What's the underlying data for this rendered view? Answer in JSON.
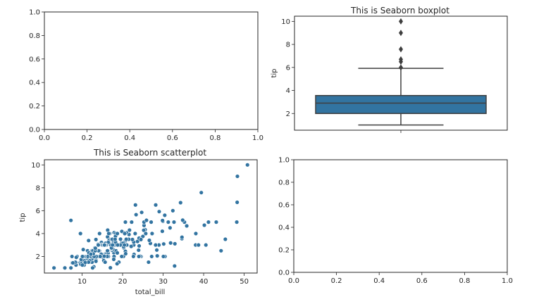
{
  "chart_data": [
    {
      "type": "empty",
      "xlim": [
        0,
        1
      ],
      "ylim": [
        0,
        1
      ],
      "xticks": [
        "0.0",
        "0.2",
        "0.4",
        "0.6",
        "0.8",
        "1.0"
      ],
      "yticks": [
        "0.0",
        "0.2",
        "0.4",
        "0.6",
        "0.8",
        "1.0"
      ]
    },
    {
      "type": "box",
      "title": "This is Seaborn boxplot",
      "ylabel": "tip",
      "ylim": [
        0.55,
        10.45
      ],
      "yticks": [
        "2",
        "4",
        "6",
        "8",
        "10"
      ],
      "box_color": "#3274a1",
      "stats": {
        "whisker_low": 1.0,
        "q1": 2.0,
        "median": 2.9,
        "q3": 3.56,
        "whisker_high": 5.92
      },
      "outliers": [
        6.0,
        6.5,
        6.7,
        7.58,
        9.0,
        10.0
      ]
    },
    {
      "type": "scatter",
      "title": "This is Seaborn scatterplot",
      "xlabel": "total_bill",
      "ylabel": "tip",
      "xlim": [
        0.7,
        53.2
      ],
      "ylim": [
        0.55,
        10.45
      ],
      "xticks": [
        "10",
        "20",
        "30",
        "40",
        "50"
      ],
      "yticks": [
        "2",
        "4",
        "6",
        "8",
        "10"
      ],
      "marker_color": "#3274a1",
      "x": [
        16.99,
        10.34,
        21.01,
        23.68,
        24.59,
        25.29,
        8.77,
        26.88,
        15.04,
        14.78,
        10.27,
        35.26,
        15.42,
        18.43,
        14.83,
        21.58,
        10.33,
        16.29,
        16.97,
        20.65,
        17.92,
        20.29,
        15.77,
        39.42,
        19.82,
        17.81,
        13.37,
        12.69,
        21.7,
        19.65,
        9.55,
        18.35,
        15.06,
        20.69,
        17.78,
        24.06,
        16.31,
        16.93,
        18.69,
        31.27,
        16.04,
        17.46,
        13.94,
        9.68,
        30.4,
        18.29,
        22.23,
        32.4,
        28.55,
        18.04,
        12.54,
        10.29,
        34.81,
        9.94,
        25.56,
        19.49,
        38.01,
        26.41,
        11.24,
        48.27,
        20.29,
        13.81,
        11.02,
        18.29,
        17.59,
        20.08,
        16.45,
        3.07,
        20.23,
        15.01,
        12.02,
        17.07,
        26.86,
        25.28,
        14.73,
        10.51,
        17.92,
        27.2,
        22.76,
        17.29,
        19.44,
        16.66,
        10.07,
        32.68,
        15.98,
        34.83,
        13.03,
        18.28,
        24.71,
        21.16,
        28.97,
        22.49,
        5.75,
        16.32,
        22.75,
        40.17,
        27.28,
        12.03,
        21.01,
        12.46,
        11.35,
        15.38,
        44.3,
        22.42,
        20.92,
        15.36,
        20.49,
        25.21,
        18.24,
        14.31,
        14.0,
        7.25,
        38.07,
        23.95,
        25.71,
        17.31,
        29.93,
        10.65,
        12.43,
        24.08,
        11.69,
        13.42,
        14.26,
        15.95,
        12.48,
        29.8,
        8.52,
        14.52,
        11.38,
        22.82,
        19.08,
        20.27,
        11.17,
        12.26,
        18.26,
        8.51,
        10.33,
        14.15,
        16.0,
        13.16,
        17.47,
        34.3,
        41.19,
        27.05,
        16.43,
        8.35,
        18.64,
        11.87,
        9.78,
        7.51,
        14.07,
        13.13,
        17.26,
        24.55,
        19.77,
        29.85,
        48.17,
        25.0,
        13.39,
        16.49,
        21.5,
        12.66,
        16.21,
        13.81,
        17.51,
        24.52,
        20.76,
        31.71,
        10.59,
        10.63,
        50.81,
        15.81,
        7.25,
        31.85,
        16.82,
        32.9,
        17.89,
        14.48,
        9.6,
        34.63,
        34.65,
        23.33,
        45.35,
        23.17,
        40.55,
        20.69,
        20.9,
        30.46,
        18.15,
        23.1,
        15.69,
        19.81,
        28.44,
        15.48,
        16.58,
        7.56,
        10.34,
        43.11,
        13.0,
        13.51,
        18.71,
        12.74,
        13.0,
        16.4,
        20.53,
        16.47,
        26.59,
        38.73,
        24.27,
        12.76,
        30.06,
        25.89,
        48.33,
        13.27,
        28.17,
        12.9,
        28.15,
        11.59,
        7.74,
        30.14,
        12.16,
        13.42,
        8.58,
        15.98,
        13.42,
        16.27,
        10.09,
        20.45,
        13.28,
        22.12,
        24.01,
        15.69,
        11.61,
        10.77,
        15.53,
        10.07,
        12.6,
        32.83,
        35.83,
        29.03,
        27.18,
        22.67,
        17.82,
        18.78
      ],
      "y": [
        1.01,
        1.66,
        3.5,
        3.31,
        3.61,
        4.71,
        2.0,
        3.12,
        1.96,
        3.23,
        1.71,
        5.0,
        1.57,
        3.0,
        3.02,
        3.92,
        1.67,
        3.71,
        3.5,
        3.35,
        4.08,
        2.75,
        2.23,
        7.58,
        3.18,
        2.34,
        2.0,
        2.0,
        4.3,
        3.0,
        1.45,
        2.5,
        3.0,
        2.45,
        3.27,
        3.6,
        2.0,
        3.07,
        2.31,
        5.0,
        2.24,
        2.54,
        3.06,
        1.32,
        5.6,
        3.0,
        5.0,
        6.0,
        2.05,
        3.0,
        2.5,
        2.6,
        5.2,
        1.56,
        4.34,
        3.51,
        3.0,
        1.5,
        1.76,
        6.73,
        3.21,
        2.0,
        1.98,
        3.76,
        2.64,
        3.15,
        2.47,
        1.0,
        2.01,
        2.09,
        1.97,
        3.0,
        3.14,
        5.0,
        2.2,
        1.25,
        3.08,
        4.0,
        3.0,
        2.71,
        3.0,
        3.4,
        1.83,
        5.0,
        2.03,
        5.17,
        2.0,
        4.0,
        5.85,
        3.0,
        3.0,
        3.5,
        1.0,
        4.3,
        3.25,
        4.73,
        4.0,
        1.5,
        3.0,
        1.5,
        2.5,
        3.0,
        2.5,
        3.48,
        4.08,
        1.64,
        4.06,
        4.29,
        3.76,
        4.0,
        3.0,
        1.0,
        4.0,
        2.55,
        4.0,
        3.5,
        5.07,
        1.5,
        1.8,
        2.92,
        2.31,
        1.68,
        2.5,
        2.0,
        2.52,
        4.2,
        1.48,
        2.0,
        2.0,
        2.18,
        1.5,
        2.83,
        1.5,
        2.0,
        3.25,
        1.25,
        2.0,
        2.0,
        2.0,
        2.75,
        3.5,
        6.7,
        5.0,
        5.0,
        2.3,
        1.5,
        1.36,
        1.63,
        1.73,
        2.0,
        2.5,
        2.0,
        2.74,
        2.0,
        2.0,
        5.14,
        5.0,
        3.75,
        2.61,
        2.0,
        3.5,
        2.5,
        2.0,
        2.0,
        3.0,
        3.48,
        2.24,
        4.5,
        1.61,
        2.0,
        10.0,
        3.16,
        5.15,
        3.18,
        4.0,
        3.11,
        2.0,
        2.0,
        4.0,
        3.55,
        3.68,
        5.65,
        3.5,
        6.5,
        3.0,
        5.0,
        3.5,
        2.0,
        3.5,
        4.0,
        1.5,
        4.19,
        2.56,
        2.02,
        4.0,
        1.44,
        2.0,
        5.0,
        2.0,
        2.0,
        4.0,
        2.01,
        2.0,
        2.5,
        4.0,
        3.23,
        3.41,
        3.0,
        2.03,
        2.23,
        2.0,
        5.16,
        9.0,
        2.5,
        6.5,
        1.1,
        3.0,
        1.5,
        1.44,
        3.09,
        2.2,
        3.48,
        1.92,
        3.0,
        1.58,
        2.5,
        2.0,
        3.0,
        2.72,
        2.88,
        2.0,
        3.0,
        3.39,
        1.47,
        3.0,
        1.25,
        1.0,
        1.17,
        4.67,
        5.92,
        2.0,
        2.0,
        1.75,
        3.0
      ]
    },
    {
      "type": "empty",
      "xlim": [
        0,
        1
      ],
      "ylim": [
        0,
        1
      ],
      "xticks": [
        "0.0",
        "0.2",
        "0.4",
        "0.6",
        "0.8",
        "1.0"
      ],
      "yticks": [
        "0.0",
        "0.2",
        "0.4",
        "0.6",
        "0.8",
        "1.0"
      ]
    }
  ]
}
